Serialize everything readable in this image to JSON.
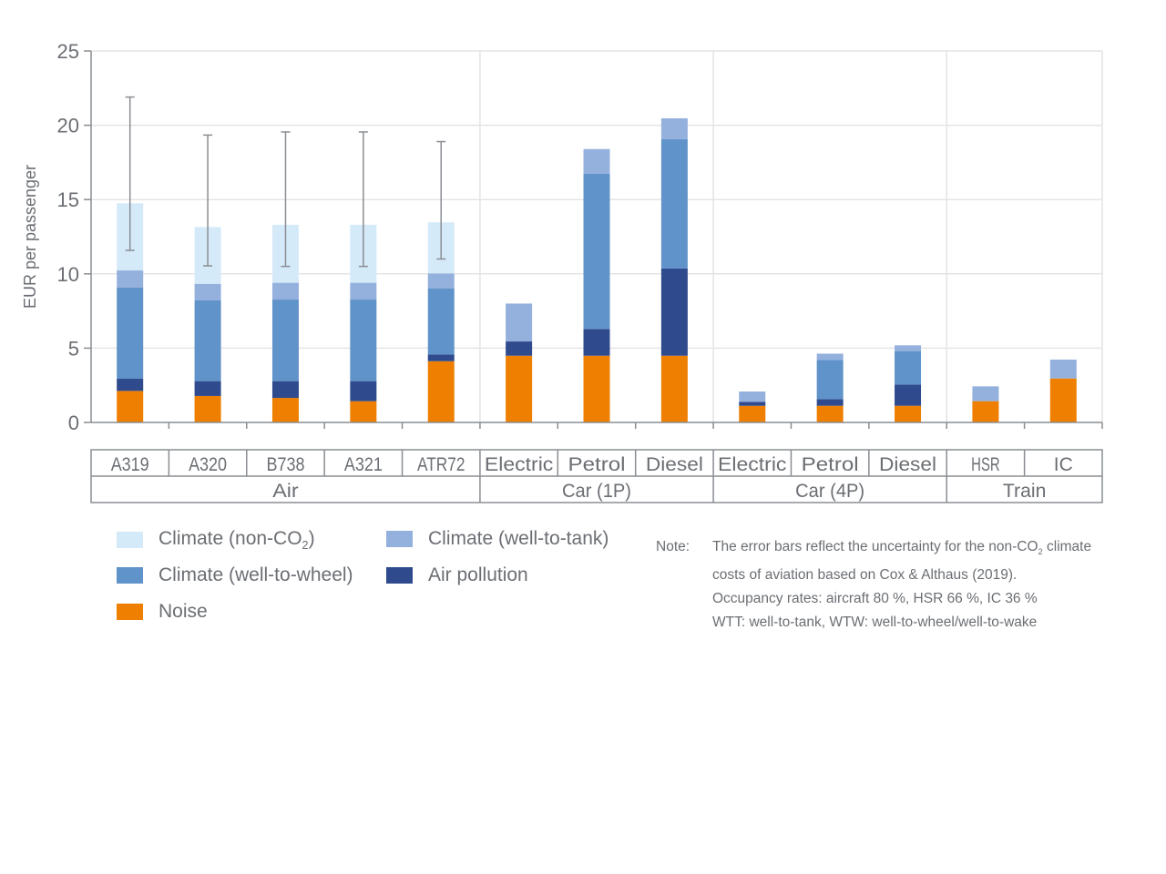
{
  "chart_data": {
    "type": "bar",
    "stacked": true,
    "title": "",
    "xlabel": "",
    "ylabel": "EUR per passenger",
    "ylim": [
      0,
      25
    ],
    "yticks": [
      0,
      5,
      10,
      15,
      20,
      25
    ],
    "grid": true,
    "categories": [
      "A319",
      "A320",
      "B738",
      "A321",
      "ATR72",
      "Electric",
      "Petrol",
      "Diesel",
      "Electric",
      "Petrol",
      "Diesel",
      "HSR",
      "IC"
    ],
    "groups": [
      {
        "label": "Air",
        "count": 5
      },
      {
        "label": "Car (1P)",
        "count": 3
      },
      {
        "label": "Car (4P)",
        "count": 3
      },
      {
        "label": "Train",
        "count": 2
      }
    ],
    "series": [
      {
        "name": "Noise",
        "color": "#ee7f00",
        "values": [
          2.12,
          1.78,
          1.65,
          1.43,
          4.12,
          4.49,
          4.49,
          4.49,
          1.12,
          1.12,
          1.12,
          1.43,
          2.96
        ]
      },
      {
        "name": "Air pollution",
        "color": "#2f4b8e",
        "values": [
          0.82,
          1.0,
          1.13,
          1.35,
          0.45,
          0.96,
          1.8,
          5.87,
          0.27,
          0.45,
          1.43,
          0,
          0
        ]
      },
      {
        "name": "Climate (well-to-wheel)",
        "color": "#6093c9",
        "values": [
          6.13,
          5.43,
          5.49,
          5.49,
          4.46,
          0,
          10.44,
          8.7,
          0,
          2.63,
          2.23,
          0,
          0
        ]
      },
      {
        "name": "Climate (well-to-tank)",
        "color": "#94b0dd",
        "values": [
          1.16,
          1.12,
          1.13,
          1.13,
          1.0,
          2.55,
          1.67,
          1.41,
          0.69,
          0.43,
          0.41,
          1.0,
          1.27
        ]
      },
      {
        "name": "Climate (non-CO2)",
        "color": "#d5eaf9",
        "values": [
          4.52,
          3.82,
          3.9,
          3.9,
          3.44,
          0,
          0,
          0,
          0,
          0,
          0,
          0,
          0
        ]
      }
    ],
    "error_bars": [
      {
        "category_index": 0,
        "low": 11.58,
        "high": 21.9
      },
      {
        "category_index": 1,
        "low": 10.54,
        "high": 19.34
      },
      {
        "category_index": 2,
        "low": 10.5,
        "high": 19.55
      },
      {
        "category_index": 3,
        "low": 10.5,
        "high": 19.55
      },
      {
        "category_index": 4,
        "low": 11.0,
        "high": 18.9
      }
    ],
    "legend": {
      "placement": "bottom-left",
      "items": [
        {
          "label": "Climate (non-CO",
          "sub": "2",
          "suffix": ")",
          "color": "#d5eaf9"
        },
        {
          "label": "Climate (well-to-tank)",
          "sub": "",
          "suffix": "",
          "color": "#94b0dd"
        },
        {
          "label": "Climate (well-to-wheel)",
          "sub": "",
          "suffix": "",
          "color": "#6093c9"
        },
        {
          "label": "Air pollution",
          "sub": "",
          "suffix": "",
          "color": "#2f4b8e"
        },
        {
          "label": "Noise",
          "sub": "",
          "suffix": "",
          "color": "#ee7f00"
        }
      ]
    },
    "note": {
      "label": "Note:",
      "lines": [
        {
          "pre": "The error bars reflect the uncertainty for the non-CO",
          "sub": "2",
          "post": " climate"
        },
        {
          "pre": "costs of aviation based on Cox & Althaus (2019).",
          "sub": "",
          "post": ""
        },
        {
          "pre": "Occupancy rates: aircraft 80 %, HSR 66 %, IC 36 %",
          "sub": "",
          "post": ""
        },
        {
          "pre": "WTT: well-to-tank, WTW: well-to-wheel/well-to-wake",
          "sub": "",
          "post": ""
        }
      ]
    },
    "colors": {
      "axis": "#8a8d92",
      "grid": "#e4e4e4",
      "error_bar": "#8a8d92",
      "text": "#6b6e73"
    }
  }
}
